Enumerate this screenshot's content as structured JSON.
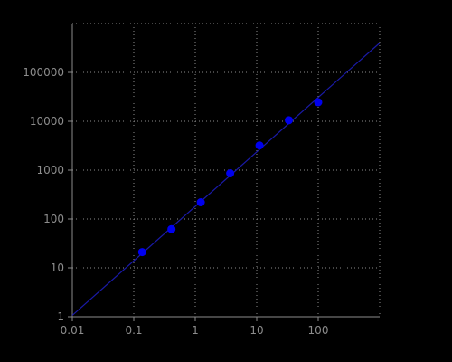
{
  "chart_data": {
    "type": "scatter",
    "title": "",
    "xlabel": "",
    "ylabel": "",
    "x_scale": "log",
    "y_scale": "log",
    "xlim": [
      0.01,
      1000
    ],
    "ylim": [
      1,
      1000000
    ],
    "x_ticks": [
      0.01,
      0.1,
      1,
      10,
      100
    ],
    "x_tick_labels": [
      "0.01",
      "0.1",
      "1",
      "10",
      "100"
    ],
    "y_ticks": [
      1,
      10,
      100,
      1000,
      10000,
      100000
    ],
    "y_tick_labels": [
      "1",
      "10",
      "100",
      "1000",
      "10000",
      "100000"
    ],
    "grid": true,
    "legend": "none",
    "series": [
      {
        "type": "scatter",
        "x": [
          0.137,
          0.41,
          1.23,
          3.7,
          11.1,
          33.3,
          100
        ],
        "y": [
          21,
          62,
          220,
          860,
          3200,
          10500,
          24500
        ]
      },
      {
        "type": "line",
        "x": [
          0.01,
          1000
        ],
        "y": [
          1.07,
          400000
        ]
      }
    ],
    "colors": {
      "background": "#000000",
      "axis": "#8c8c8c",
      "grid": "#8c8c8c",
      "points": "#0000ee",
      "fit_line": "#1a1aa8"
    }
  }
}
